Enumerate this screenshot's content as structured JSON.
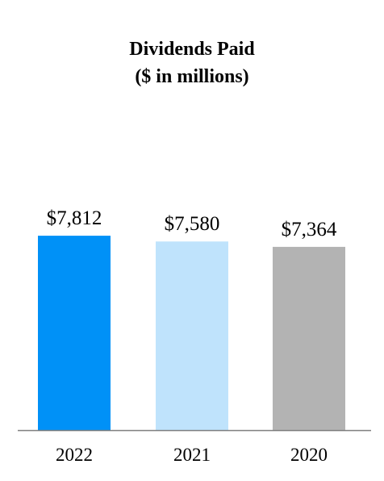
{
  "chart_data": {
    "type": "bar",
    "title": "Dividends Paid",
    "subtitle": "($ in millions)",
    "categories": [
      "2022",
      "2021",
      "2020"
    ],
    "values": [
      7812,
      7580,
      7364
    ],
    "value_labels": [
      "$7,812",
      "$7,580",
      "$7,364"
    ],
    "colors": [
      "#0091f7",
      "#bfe3fc",
      "#b3b3b3"
    ],
    "axis_color": "#7f7f7f",
    "ylim": [
      0,
      8500
    ],
    "grid": false,
    "legend": "none"
  }
}
